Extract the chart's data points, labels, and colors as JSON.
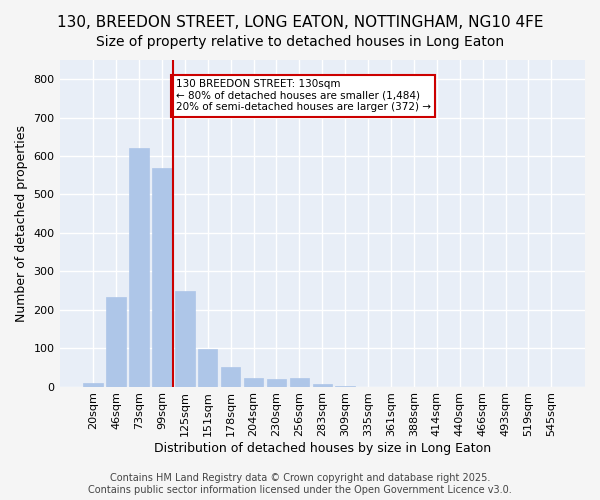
{
  "title": "130, BREEDON STREET, LONG EATON, NOTTINGHAM, NG10 4FE",
  "subtitle": "Size of property relative to detached houses in Long Eaton",
  "xlabel": "Distribution of detached houses by size in Long Eaton",
  "ylabel": "Number of detached properties",
  "categories": [
    "20sqm",
    "46sqm",
    "73sqm",
    "99sqm",
    "125sqm",
    "151sqm",
    "178sqm",
    "204sqm",
    "230sqm",
    "256sqm",
    "283sqm",
    "309sqm",
    "335sqm",
    "361sqm",
    "388sqm",
    "414sqm",
    "440sqm",
    "466sqm",
    "493sqm",
    "519sqm",
    "545sqm"
  ],
  "values": [
    10,
    232,
    620,
    570,
    250,
    97,
    50,
    22,
    20,
    22,
    8,
    2,
    0,
    0,
    0,
    0,
    0,
    0,
    0,
    0,
    0
  ],
  "bar_color": "#aec6e8",
  "bar_edge_color": "#aec6e8",
  "vline_color": "#cc0000",
  "annotation_text": "130 BREEDON STREET: 130sqm\n← 80% of detached houses are smaller (1,484)\n20% of semi-detached houses are larger (372) →",
  "annotation_box_color": "#ffffff",
  "annotation_box_edge_color": "#cc0000",
  "ylim": [
    0,
    850
  ],
  "yticks": [
    0,
    100,
    200,
    300,
    400,
    500,
    600,
    700,
    800
  ],
  "background_color": "#e8eef7",
  "grid_color": "#ffffff",
  "footer": "Contains HM Land Registry data © Crown copyright and database right 2025.\nContains public sector information licensed under the Open Government Licence v3.0.",
  "title_fontsize": 11,
  "subtitle_fontsize": 10,
  "axis_label_fontsize": 9,
  "tick_fontsize": 8,
  "footer_fontsize": 7
}
